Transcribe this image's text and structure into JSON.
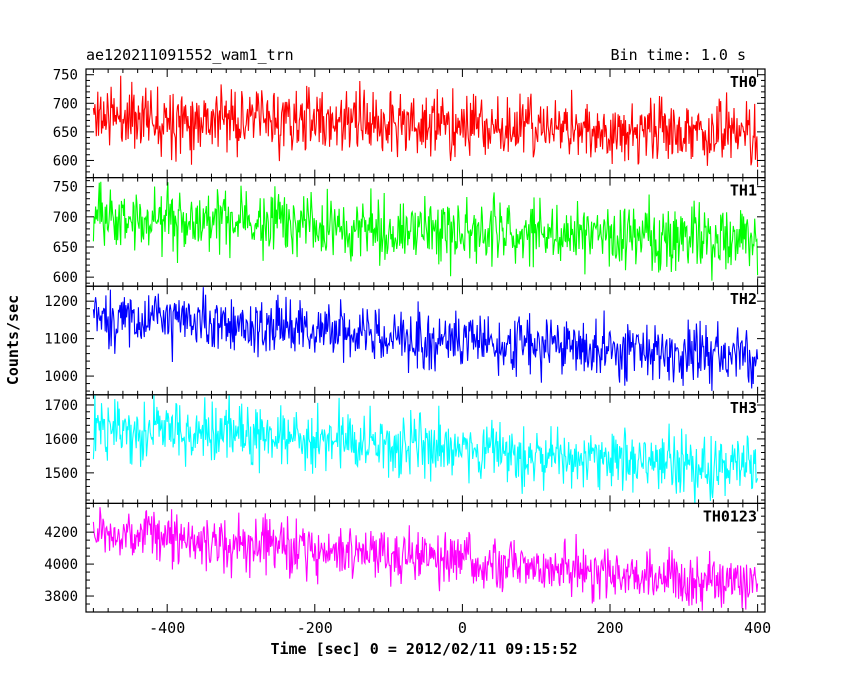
{
  "chart_data": {
    "type": "line",
    "title": "ae120211091552_wam1_trn",
    "bin_label": "Bin time: 1.0 s",
    "xlabel": "Time [sec] 0 = 2012/02/11 09:15:52",
    "ylabel": "Counts/sec",
    "xlim": [
      -510,
      410
    ],
    "x_ticks": [
      -400,
      -200,
      0,
      200,
      400
    ],
    "x_start": -500,
    "x_end": 400,
    "x_step": 1,
    "grid": false,
    "panels": [
      {
        "name": "TH0",
        "color": "#ff0000",
        "ylim": [
          570,
          760
        ],
        "y_ticks": [
          600,
          650,
          700,
          750
        ],
        "trend": [
          680,
          645
        ],
        "noise": 28,
        "seed": 11
      },
      {
        "name": "TH1",
        "color": "#00ff00",
        "ylim": [
          585,
          765
        ],
        "y_ticks": [
          600,
          650,
          700,
          750
        ],
        "trend": [
          700,
          660
        ],
        "noise": 26,
        "seed": 23
      },
      {
        "name": "TH2",
        "color": "#0000ff",
        "ylim": [
          950,
          1240
        ],
        "y_ticks": [
          1000,
          1100,
          1200
        ],
        "trend": [
          1160,
          1045
        ],
        "noise": 38,
        "seed": 37
      },
      {
        "name": "TH3",
        "color": "#00ffff",
        "ylim": [
          1410,
          1730
        ],
        "y_ticks": [
          1500,
          1600,
          1700
        ],
        "trend": [
          1640,
          1510
        ],
        "noise": 45,
        "seed": 51
      },
      {
        "name": "TH0123",
        "color": "#ff00ff",
        "ylim": [
          3700,
          4380
        ],
        "y_ticks": [
          3800,
          4000,
          4200
        ],
        "trend": [
          4200,
          3870
        ],
        "noise": 85,
        "seed": 67
      }
    ]
  }
}
